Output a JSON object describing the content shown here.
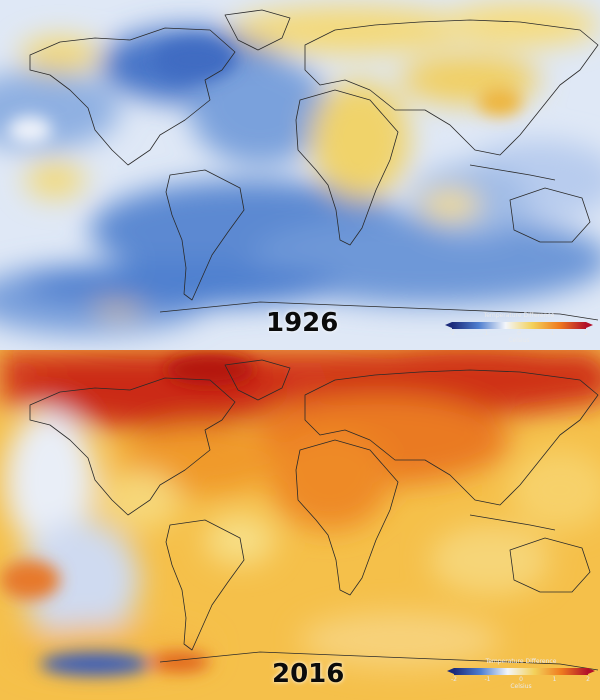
{
  "panels": [
    {
      "year": "1926",
      "colors": {
        "dominant": "#6f9bd8",
        "accent_warm": "#f2c94c"
      }
    },
    {
      "year": "2016",
      "colors": {
        "dominant": "#f3a328",
        "accent_hot": "#c81e0e"
      }
    }
  ],
  "legend": {
    "title": "Temperature Difference",
    "ticks": [
      "-2",
      "-1",
      "0",
      "1",
      "2"
    ],
    "units": "Celsius",
    "colors": [
      "#1b2a7a",
      "#4f7fd0",
      "#f3f6fb",
      "#f3d15a",
      "#ef7b1f",
      "#b2102a"
    ]
  }
}
